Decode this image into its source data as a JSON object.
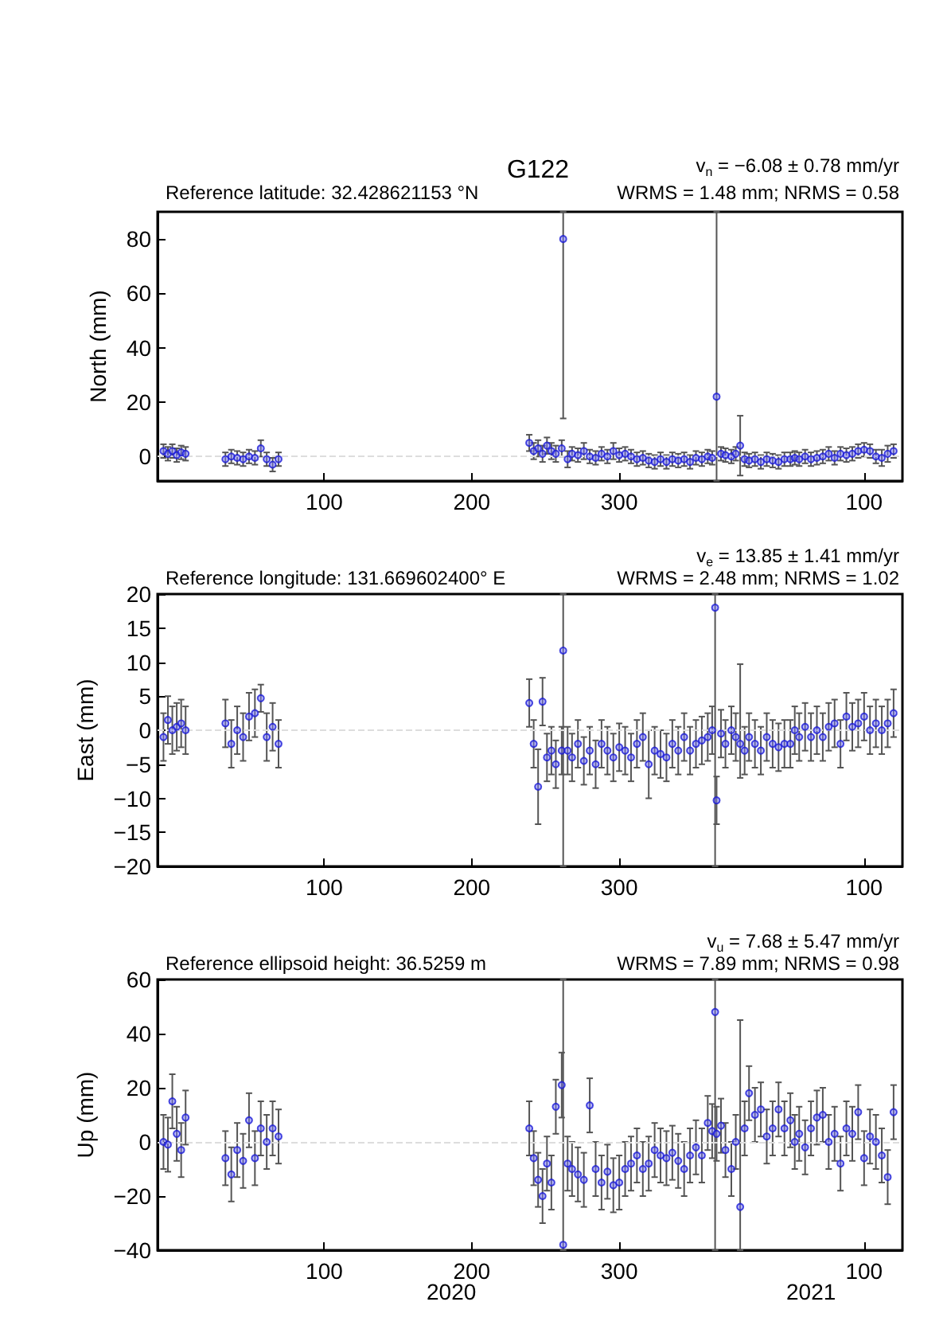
{
  "chart_data": [
    {
      "type": "scatter",
      "title": "G122",
      "subtitle": "Reference latitude: 32.428621153 °N",
      "annotations": [
        "v$_{n}$ = −6.08 ± 0.78 mm/yr",
        "WRMS = 1.48 mm; NRMS = 0.58"
      ],
      "ylabel": "North (mm)",
      "marker": "circle",
      "x": [
        "2019-12-22",
        "2019-12-25",
        "2019-12-28",
        "2019-12-31",
        "2020-01-03",
        "2020-01-06",
        "2020-02-02",
        "2020-02-06",
        "2020-02-10",
        "2020-02-14",
        "2020-02-18",
        "2020-02-22",
        "2020-02-26",
        "2020-03-01",
        "2020-03-05",
        "2020-03-09",
        "2020-08-26",
        "2020-08-29",
        "2020-09-01",
        "2020-09-04",
        "2020-09-07",
        "2020-09-10",
        "2020-09-13",
        "2020-09-17",
        "2020-09-18",
        "2020-09-21",
        "2020-09-24",
        "2020-09-28",
        "2020-10-02",
        "2020-10-06",
        "2020-10-10",
        "2020-10-14",
        "2020-10-18",
        "2020-10-22",
        "2020-10-26",
        "2020-10-30",
        "2020-11-03",
        "2020-11-07",
        "2020-11-11",
        "2020-11-15",
        "2020-11-19",
        "2020-11-23",
        "2020-11-27",
        "2020-12-01",
        "2020-12-05",
        "2020-12-09",
        "2020-12-13",
        "2020-12-17",
        "2020-12-21",
        "2020-12-25",
        "2020-12-28",
        "2020-12-31",
        "2021-01-03",
        "2021-01-06",
        "2021-01-10",
        "2021-01-13",
        "2021-01-16",
        "2021-01-19",
        "2021-01-22",
        "2021-01-26",
        "2021-01-30",
        "2021-02-03",
        "2021-02-07",
        "2021-02-11",
        "2021-02-15",
        "2021-02-19",
        "2021-02-22",
        "2021-02-25",
        "2021-03-01",
        "2021-03-05",
        "2021-03-09",
        "2021-03-13",
        "2021-03-17",
        "2021-03-21",
        "2021-03-25",
        "2021-03-29",
        "2021-04-02",
        "2021-04-06",
        "2021-04-10",
        "2021-04-14",
        "2021-04-18",
        "2021-04-22",
        "2021-04-26",
        "2021-04-30"
      ],
      "series": [
        {
          "color": "#1a1ad6",
          "values": [
            2,
            1,
            2,
            0.5,
            1.5,
            1,
            -1,
            0,
            -0.5,
            -1,
            0,
            -0.5,
            3,
            -1,
            -3,
            -1,
            5,
            2,
            3,
            1,
            4,
            2,
            1,
            3,
            80,
            -1,
            1,
            0.5,
            2,
            0,
            -0.5,
            1,
            0,
            2,
            0.5,
            1,
            0,
            -1,
            -0.5,
            -1.5,
            -2,
            -1,
            -2,
            -1,
            -1.5,
            -1,
            -2,
            -0.5,
            -1,
            0,
            -0.5,
            22,
            1,
            0.5,
            0,
            1,
            4,
            -1,
            -1.5,
            -1,
            -2,
            -1,
            -1.5,
            -2,
            -1,
            -1,
            -0.5,
            -1,
            0,
            -1,
            -0.5,
            0,
            1,
            -0.5,
            1,
            0.5,
            1,
            2,
            2.5,
            2,
            0,
            -0.5,
            1,
            2
          ],
          "errors": [
            2.5,
            2.5,
            2.5,
            2.5,
            2.5,
            2.5,
            2.5,
            2.5,
            2.5,
            2.5,
            2.5,
            2.5,
            3,
            2.5,
            2.5,
            2.5,
            3,
            3,
            3,
            3,
            3,
            3,
            3,
            3,
            [
              14,
              90
            ],
            3,
            2.5,
            2.5,
            3,
            2.5,
            2.5,
            2.5,
            2.5,
            3,
            2.5,
            2.5,
            2.5,
            2.5,
            2.5,
            2.5,
            2.5,
            2.5,
            2.5,
            2.5,
            2.5,
            2.5,
            2.5,
            2.5,
            2.5,
            2.5,
            2.5,
            [
              -9,
              90
            ],
            2.5,
            2.5,
            2.5,
            2.5,
            [
              -7,
              15
            ],
            2.5,
            2.5,
            2.5,
            2.5,
            2.5,
            2.5,
            2.5,
            2.5,
            2.5,
            2.5,
            2.5,
            2.5,
            2.5,
            2.5,
            2.5,
            2.5,
            2.5,
            2.5,
            2.5,
            2.5,
            2.5,
            2.5,
            2.5,
            2.5,
            3,
            3,
            2.5
          ]
        }
      ],
      "xlim": [
        "2019-12-18",
        "2021-05-06"
      ],
      "xticks": [
        {
          "value": "2020-04-09",
          "label": "100"
        },
        {
          "value": "2020-07-18",
          "label": "200"
        },
        {
          "value": "2020-10-26",
          "label": "300"
        },
        {
          "value": "2021-04-10",
          "label": "100"
        }
      ],
      "ylim": [
        -9,
        90
      ],
      "yticks": [
        0,
        20,
        40,
        60,
        80
      ],
      "ref_lines": [
        {
          "axis": "y",
          "value": 0,
          "label": null,
          "color": "#dddddd",
          "line_style": "dashed"
        }
      ]
    },
    {
      "type": "scatter",
      "subtitle": "Reference longitude: 131.669602400° E",
      "annotations": [
        "v$_{e}$ = 13.85 ± 1.41 mm/yr",
        "WRMS = 2.48 mm; NRMS = 1.02"
      ],
      "ylabel": "East (mm)",
      "marker": "circle",
      "x": [
        "2019-12-22",
        "2019-12-25",
        "2019-12-28",
        "2019-12-31",
        "2020-01-03",
        "2020-01-06",
        "2020-02-02",
        "2020-02-06",
        "2020-02-10",
        "2020-02-14",
        "2020-02-18",
        "2020-02-22",
        "2020-02-26",
        "2020-03-01",
        "2020-03-05",
        "2020-03-09",
        "2020-08-26",
        "2020-08-29",
        "2020-09-01",
        "2020-09-04",
        "2020-09-07",
        "2020-09-10",
        "2020-09-13",
        "2020-09-17",
        "2020-09-18",
        "2020-09-21",
        "2020-09-24",
        "2020-09-28",
        "2020-10-02",
        "2020-10-06",
        "2020-10-10",
        "2020-10-14",
        "2020-10-18",
        "2020-10-22",
        "2020-10-26",
        "2020-10-30",
        "2020-11-03",
        "2020-11-07",
        "2020-11-11",
        "2020-11-15",
        "2020-11-19",
        "2020-11-23",
        "2020-11-27",
        "2020-12-01",
        "2020-12-05",
        "2020-12-09",
        "2020-12-13",
        "2020-12-17",
        "2020-12-21",
        "2020-12-25",
        "2020-12-28",
        "2020-12-30",
        "2020-12-31",
        "2021-01-03",
        "2021-01-06",
        "2021-01-10",
        "2021-01-13",
        "2021-01-16",
        "2021-01-19",
        "2021-01-22",
        "2021-01-26",
        "2021-01-30",
        "2021-02-03",
        "2021-02-07",
        "2021-02-11",
        "2021-02-15",
        "2021-02-19",
        "2021-02-22",
        "2021-02-25",
        "2021-03-01",
        "2021-03-05",
        "2021-03-09",
        "2021-03-13",
        "2021-03-17",
        "2021-03-21",
        "2021-03-25",
        "2021-03-29",
        "2021-04-02",
        "2021-04-06",
        "2021-04-10",
        "2021-04-14",
        "2021-04-18",
        "2021-04-22",
        "2021-04-26",
        "2021-04-30"
      ],
      "series": [
        {
          "color": "#1a1ad6",
          "values": [
            -1,
            1.5,
            0,
            0.5,
            1,
            0,
            1,
            -2,
            0,
            -1,
            2,
            2.5,
            4.7,
            -1,
            0.5,
            -2,
            4,
            -2,
            -8.3,
            4.2,
            -4,
            -3,
            -5,
            -3,
            11.7,
            -3,
            -4,
            -2,
            -4.5,
            -3,
            -5,
            -2,
            -3,
            -4,
            -2.5,
            -3,
            -4,
            -2,
            -1,
            -5,
            -3,
            -3.5,
            -4,
            -2,
            -3,
            -1,
            -3,
            -2,
            -1.5,
            -1,
            0,
            18,
            -10.3,
            -0.5,
            -2,
            0,
            -1,
            -2,
            -3,
            -1,
            -2,
            -3,
            -1,
            -2,
            -2.5,
            -2,
            -2,
            0,
            -1,
            0.5,
            -1,
            0,
            -1,
            0.5,
            1,
            -2,
            2,
            0.5,
            1,
            2,
            0,
            1,
            0,
            1,
            2.5
          ],
          "errors": [
            3.5,
            3.5,
            3.5,
            3.5,
            3.5,
            3.5,
            3.5,
            3.5,
            3.5,
            3.5,
            3.5,
            3.5,
            2,
            3.5,
            3.5,
            3.5,
            3.5,
            3.5,
            5.5,
            3.5,
            3.5,
            3.5,
            3.5,
            3.5,
            [
              -20,
              20
            ],
            3.5,
            3.5,
            3.5,
            3.5,
            3.5,
            3.5,
            3.5,
            3.5,
            3.5,
            3.5,
            3.5,
            3.5,
            3.5,
            3.5,
            5,
            3.5,
            3.5,
            3.5,
            3.5,
            3.5,
            3.5,
            3.5,
            3.5,
            3.5,
            3.5,
            3.5,
            [
              -20,
              20
            ],
            3.5,
            3.5,
            3.5,
            3.5,
            3.5,
            [
              -7,
              9.7
            ],
            3.5,
            3.5,
            3.5,
            3.5,
            3.5,
            3.5,
            3.5,
            3.5,
            3.5,
            3.5,
            3.5,
            3.5,
            3.5,
            3.5,
            3.5,
            3.5,
            3.5,
            3.5,
            3.5,
            3.5,
            3.5,
            3.5,
            3.5,
            3.5,
            3.5,
            3.5,
            3.5
          ]
        }
      ],
      "xlim": [
        "2019-12-18",
        "2021-05-06"
      ],
      "xticks": [
        {
          "value": "2020-04-09",
          "label": "100"
        },
        {
          "value": "2020-07-18",
          "label": "200"
        },
        {
          "value": "2020-10-26",
          "label": "300"
        },
        {
          "value": "2021-04-10",
          "label": "100"
        }
      ],
      "ylim": [
        -20,
        20
      ],
      "yticks": [
        -20,
        -15,
        -10,
        -5,
        0,
        5,
        10,
        15,
        20
      ],
      "ref_lines": [
        {
          "axis": "y",
          "value": 0,
          "label": null,
          "color": "#dddddd",
          "line_style": "dashed"
        }
      ]
    },
    {
      "type": "scatter",
      "subtitle": "Reference ellipsoid height: 36.5259 m",
      "annotations": [
        "v$_{u}$ = 7.68 ± 5.47 mm/yr",
        "WRMS = 7.89 mm; NRMS = 0.98",
        "2020",
        "2021"
      ],
      "ylabel": "Up (mm)",
      "marker": "circle",
      "x": [
        "2019-12-22",
        "2019-12-25",
        "2019-12-28",
        "2019-12-31",
        "2020-01-03",
        "2020-01-06",
        "2020-02-02",
        "2020-02-06",
        "2020-02-10",
        "2020-02-14",
        "2020-02-18",
        "2020-02-22",
        "2020-02-26",
        "2020-03-01",
        "2020-03-05",
        "2020-03-09",
        "2020-08-26",
        "2020-08-29",
        "2020-09-01",
        "2020-09-04",
        "2020-09-07",
        "2020-09-10",
        "2020-09-13",
        "2020-09-17",
        "2020-09-18",
        "2020-09-21",
        "2020-09-24",
        "2020-09-28",
        "2020-10-02",
        "2020-10-06",
        "2020-10-10",
        "2020-10-14",
        "2020-10-18",
        "2020-10-22",
        "2020-10-26",
        "2020-10-30",
        "2020-11-03",
        "2020-11-07",
        "2020-11-11",
        "2020-11-15",
        "2020-11-19",
        "2020-11-23",
        "2020-11-27",
        "2020-12-01",
        "2020-12-05",
        "2020-12-09",
        "2020-12-13",
        "2020-12-17",
        "2020-12-21",
        "2020-12-25",
        "2020-12-28",
        "2020-12-30",
        "2020-12-31",
        "2021-01-03",
        "2021-01-06",
        "2021-01-10",
        "2021-01-13",
        "2021-01-16",
        "2021-01-19",
        "2021-01-22",
        "2021-01-26",
        "2021-01-30",
        "2021-02-03",
        "2021-02-07",
        "2021-02-11",
        "2021-02-15",
        "2021-02-19",
        "2021-02-22",
        "2021-02-25",
        "2021-03-01",
        "2021-03-05",
        "2021-03-09",
        "2021-03-13",
        "2021-03-17",
        "2021-03-21",
        "2021-03-25",
        "2021-03-29",
        "2021-04-02",
        "2021-04-06",
        "2021-04-10",
        "2021-04-14",
        "2021-04-18",
        "2021-04-22",
        "2021-04-26",
        "2021-04-30"
      ],
      "series": [
        {
          "color": "#1a1ad6",
          "values": [
            0,
            -1,
            15,
            3,
            -3,
            9,
            -6,
            -12,
            -3,
            -7,
            8,
            -6,
            5,
            0,
            5,
            2,
            5,
            -6,
            -14,
            -20,
            -8,
            -15,
            13,
            21,
            -38,
            -8,
            -10,
            -12,
            -14,
            13.5,
            -10,
            -15,
            -11,
            -16,
            -15,
            -10,
            -8,
            -5,
            -10,
            -8,
            -3,
            -5,
            -6,
            -4,
            -7,
            -10,
            -5,
            -2,
            -5,
            7,
            4,
            48,
            3,
            6,
            -3,
            -10,
            0,
            -24,
            5,
            18,
            10,
            12,
            2,
            5,
            12,
            5,
            8,
            0,
            3,
            -2,
            5,
            9,
            10,
            0,
            3,
            -8,
            5,
            3,
            11,
            -6,
            2,
            0,
            -5,
            -13,
            11
          ],
          "errors": [
            10,
            10,
            10,
            10,
            10,
            10,
            10,
            10,
            10,
            10,
            10,
            10,
            10,
            10,
            10,
            10,
            10,
            10,
            10,
            10,
            10,
            10,
            10,
            12,
            [
              -40,
              60
            ],
            10,
            10,
            10,
            10,
            10,
            10,
            10,
            10,
            10,
            10,
            10,
            10,
            10,
            10,
            10,
            10,
            10,
            10,
            10,
            10,
            10,
            10,
            10,
            10,
            10,
            10,
            [
              -40,
              60
            ],
            10,
            10,
            10,
            10,
            10,
            [
              -40,
              45
            ],
            10,
            10,
            10,
            10,
            10,
            10,
            10,
            10,
            10,
            10,
            10,
            10,
            10,
            10,
            10,
            10,
            10,
            10,
            10,
            10,
            10,
            10,
            10,
            10,
            10,
            10,
            10
          ]
        }
      ],
      "xlim": [
        "2019-12-18",
        "2021-05-06"
      ],
      "xticks": [
        {
          "value": "2020-04-09",
          "label": "100"
        },
        {
          "value": "2020-07-18",
          "label": "200"
        },
        {
          "value": "2020-10-26",
          "label": "300"
        },
        {
          "value": "2021-04-10",
          "label": "100"
        }
      ],
      "ylim": [
        -40,
        60
      ],
      "yticks": [
        -40,
        -20,
        0,
        20,
        40,
        60
      ],
      "ref_lines": [
        {
          "axis": "y",
          "value": 0,
          "label": null,
          "color": "#dddddd",
          "line_style": "dashed"
        }
      ]
    }
  ]
}
